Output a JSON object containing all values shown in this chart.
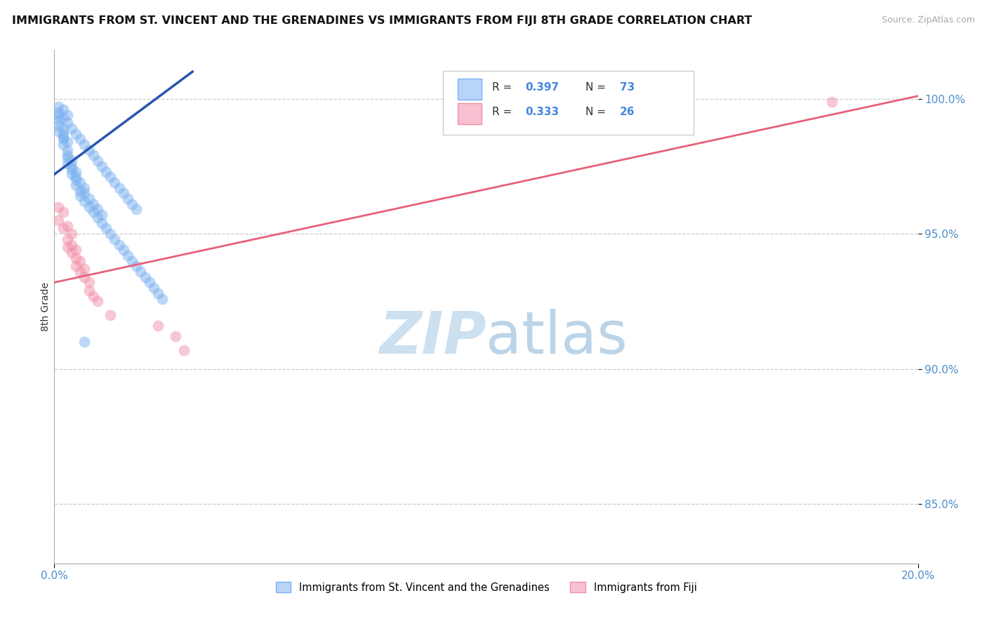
{
  "title": "IMMIGRANTS FROM ST. VINCENT AND THE GRENADINES VS IMMIGRANTS FROM FIJI 8TH GRADE CORRELATION CHART",
  "source_text": "Source: ZipAtlas.com",
  "ylabel": "8th Grade",
  "x_min": 0.0,
  "x_max": 0.2,
  "y_min": 0.828,
  "y_max": 1.018,
  "y_tick_values": [
    0.85,
    0.9,
    0.95,
    1.0
  ],
  "y_tick_labels": [
    "85.0%",
    "90.0%",
    "95.0%",
    "100.0%"
  ],
  "x_tick_values": [
    0.0,
    0.2
  ],
  "x_tick_labels": [
    "0.0%",
    "20.0%"
  ],
  "scatter1_color": "#7ab0f0",
  "scatter2_color": "#f090a8",
  "line1_color": "#2855b0",
  "line2_color": "#e8607a",
  "legend1_color": "#b8d4f8",
  "legend2_color": "#f8c0d0",
  "legend1_edge": "#7ab0f0",
  "legend2_edge": "#f090a8",
  "title_fontsize": 11.5,
  "watermark_zip_color": "#cce0f0",
  "watermark_atlas_color": "#90b8d8",
  "blue_line_x0": 0.0,
  "blue_line_x1": 0.032,
  "blue_line_y0": 0.972,
  "blue_line_y1": 1.01,
  "pink_line_x0": 0.0,
  "pink_line_x1": 0.2,
  "pink_line_y0": 0.932,
  "pink_line_y1": 1.001,
  "blue_x": [
    0.001,
    0.001,
    0.001,
    0.001,
    0.002,
    0.002,
    0.002,
    0.002,
    0.002,
    0.003,
    0.003,
    0.003,
    0.003,
    0.003,
    0.004,
    0.004,
    0.004,
    0.004,
    0.005,
    0.005,
    0.005,
    0.005,
    0.006,
    0.006,
    0.006,
    0.007,
    0.007,
    0.007,
    0.008,
    0.008,
    0.009,
    0.009,
    0.01,
    0.01,
    0.011,
    0.011,
    0.012,
    0.013,
    0.014,
    0.015,
    0.016,
    0.017,
    0.018,
    0.019,
    0.02,
    0.021,
    0.022,
    0.023,
    0.024,
    0.025,
    0.001,
    0.001,
    0.002,
    0.002,
    0.003,
    0.003,
    0.004,
    0.005,
    0.006,
    0.007,
    0.008,
    0.009,
    0.01,
    0.011,
    0.012,
    0.013,
    0.014,
    0.015,
    0.016,
    0.017,
    0.018,
    0.019,
    0.007
  ],
  "blue_y": [
    0.99,
    0.992,
    0.994,
    0.988,
    0.985,
    0.987,
    0.989,
    0.983,
    0.986,
    0.981,
    0.984,
    0.979,
    0.976,
    0.978,
    0.975,
    0.977,
    0.972,
    0.974,
    0.97,
    0.973,
    0.968,
    0.971,
    0.966,
    0.969,
    0.964,
    0.967,
    0.962,
    0.965,
    0.96,
    0.963,
    0.958,
    0.961,
    0.956,
    0.959,
    0.954,
    0.957,
    0.952,
    0.95,
    0.948,
    0.946,
    0.944,
    0.942,
    0.94,
    0.938,
    0.936,
    0.934,
    0.932,
    0.93,
    0.928,
    0.926,
    0.995,
    0.997,
    0.993,
    0.996,
    0.991,
    0.994,
    0.989,
    0.987,
    0.985,
    0.983,
    0.981,
    0.979,
    0.977,
    0.975,
    0.973,
    0.971,
    0.969,
    0.967,
    0.965,
    0.963,
    0.961,
    0.959,
    0.91
  ],
  "pink_x": [
    0.001,
    0.001,
    0.002,
    0.002,
    0.003,
    0.003,
    0.003,
    0.004,
    0.004,
    0.004,
    0.005,
    0.005,
    0.005,
    0.006,
    0.006,
    0.007,
    0.007,
    0.008,
    0.008,
    0.009,
    0.01,
    0.013,
    0.024,
    0.028,
    0.03,
    0.18
  ],
  "pink_y": [
    0.96,
    0.955,
    0.958,
    0.952,
    0.948,
    0.953,
    0.945,
    0.95,
    0.943,
    0.946,
    0.941,
    0.944,
    0.938,
    0.936,
    0.94,
    0.934,
    0.937,
    0.932,
    0.929,
    0.927,
    0.925,
    0.92,
    0.916,
    0.912,
    0.907,
    0.999
  ]
}
